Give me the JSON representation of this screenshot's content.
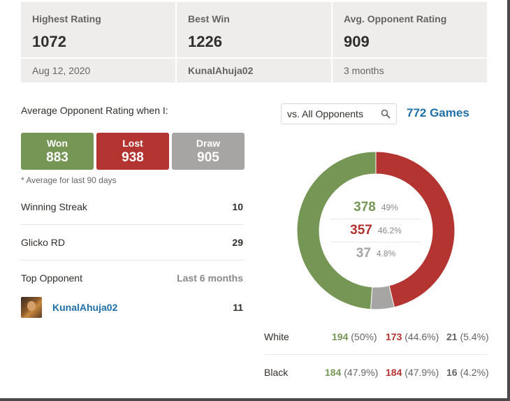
{
  "stats": [
    {
      "label": "Highest Rating",
      "value": "1072",
      "sub": "Aug 12, 2020"
    },
    {
      "label": "Best Win",
      "value": "1226",
      "sub": "KunalAhuja02"
    },
    {
      "label": "Avg. Opponent Rating",
      "value": "909",
      "sub": "3 months"
    }
  ],
  "avg_opponent": {
    "title": "Average Opponent Rating when I:",
    "won": {
      "label": "Won",
      "value": "883"
    },
    "lost": {
      "label": "Lost",
      "value": "938"
    },
    "draw": {
      "label": "Draw",
      "value": "905"
    },
    "note": "* Average for last 90 days"
  },
  "details": {
    "winning_streak": {
      "label": "Winning Streak",
      "value": "10"
    },
    "glicko_rd": {
      "label": "Glicko RD",
      "value": "29"
    },
    "top_opponent": {
      "label": "Top Opponent",
      "period": "Last 6 months",
      "name": "KunalAhuja02",
      "value": "11"
    }
  },
  "filter": {
    "value": "vs. All Opponents",
    "icon": "search-icon"
  },
  "games_total": "772 Games",
  "chart_data": {
    "type": "pie",
    "categories": [
      "Wins",
      "Losses",
      "Draws"
    ],
    "values": [
      378,
      357,
      37
    ],
    "percents": [
      "49%",
      "46.2%",
      "4.8%"
    ],
    "colors": [
      "#769656",
      "#b33430",
      "#a6a5a3"
    ]
  },
  "by_color": [
    {
      "name": "White",
      "win": "194",
      "win_pct": "(50%)",
      "loss": "173",
      "loss_pct": "(44.6%)",
      "draw": "21",
      "draw_pct": "(5.4%)"
    },
    {
      "name": "Black",
      "win": "184",
      "win_pct": "(47.9%)",
      "loss": "184",
      "loss_pct": "(47.9%)",
      "draw": "16",
      "draw_pct": "(4.2%)"
    }
  ],
  "colors": {
    "win": "#769656",
    "loss": "#b33430",
    "draw": "#a6a5a3",
    "link": "#1f6fa8",
    "card": "#eeedec"
  }
}
